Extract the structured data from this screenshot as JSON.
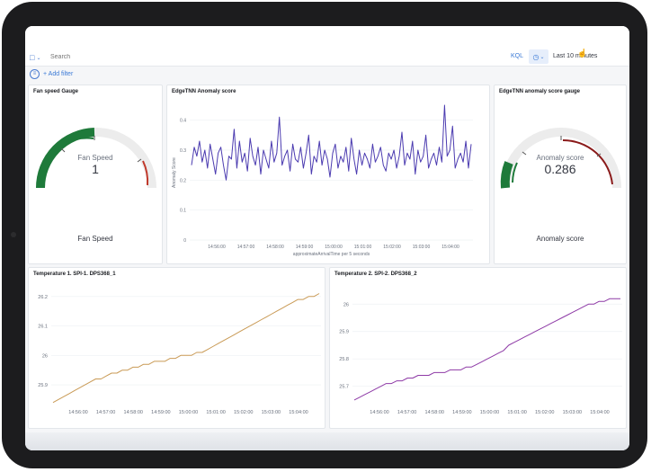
{
  "search": {
    "placeholder": "Search"
  },
  "query_language": "KQL",
  "time_range": {
    "label": "Last 10 minutes"
  },
  "filters": {
    "add_label": "+ Add filter"
  },
  "panels": {
    "fan_gauge": {
      "title": "Fan speed Gauge",
      "metric_label": "Fan Speed",
      "value": "1",
      "footer": "Fan Speed",
      "color": "#1e7a3a",
      "range_color": "#c0392b"
    },
    "anomaly_chart": {
      "title": "EdgeTNN Anomaly score"
    },
    "anomaly_gauge": {
      "title": "EdgeTNN anomaly score gauge",
      "metric_label": "Anomaly score",
      "value": "0.286",
      "footer": "Anomaly score"
    },
    "temp1": {
      "title": "Temperature 1. SPI-1. DPS368_1",
      "color": "#c99a55"
    },
    "temp2": {
      "title": "Temperature 2. SPI-2. DPS368_2",
      "color": "#8e3aa6"
    }
  },
  "chart_data": [
    {
      "type": "line",
      "title": "EdgeTNN Anomaly score",
      "xlabel": "approximateArrivalTime per 5 seconds",
      "ylabel": "Anomaly Score",
      "ylim": [
        0,
        0.45
      ],
      "yticks": [
        "0",
        "0.1",
        "0.2",
        "0.3",
        "0.4"
      ],
      "xticks": [
        "14:56:00",
        "14:57:00",
        "14:58:00",
        "14:59:00",
        "15:00:00",
        "15:01:00",
        "15:02:00",
        "15:03:00",
        "15:04:00"
      ],
      "series": [
        {
          "color": "#4b3bb0",
          "values": [
            0.25,
            0.31,
            0.28,
            0.33,
            0.26,
            0.3,
            0.24,
            0.32,
            0.27,
            0.22,
            0.29,
            0.31,
            0.25,
            0.2,
            0.28,
            0.27,
            0.37,
            0.24,
            0.33,
            0.26,
            0.29,
            0.23,
            0.34,
            0.28,
            0.25,
            0.31,
            0.22,
            0.3,
            0.27,
            0.24,
            0.33,
            0.26,
            0.29,
            0.41,
            0.25,
            0.28,
            0.3,
            0.23,
            0.32,
            0.27,
            0.26,
            0.31,
            0.24,
            0.29,
            0.35,
            0.22,
            0.28,
            0.26,
            0.33,
            0.25,
            0.3,
            0.27,
            0.21,
            0.29,
            0.32,
            0.24,
            0.28,
            0.26,
            0.31,
            0.23,
            0.34,
            0.27,
            0.22,
            0.3,
            0.25,
            0.29,
            0.27,
            0.24,
            0.32,
            0.26,
            0.28,
            0.31,
            0.25,
            0.23,
            0.29,
            0.27,
            0.3,
            0.24,
            0.28,
            0.36,
            0.25,
            0.29,
            0.27,
            0.33,
            0.22,
            0.3,
            0.26,
            0.28,
            0.35,
            0.24,
            0.27,
            0.29,
            0.25,
            0.31,
            0.26,
            0.45,
            0.28,
            0.3,
            0.38,
            0.24,
            0.27,
            0.29,
            0.26,
            0.33,
            0.24,
            0.32
          ]
        }
      ]
    },
    {
      "type": "line",
      "title": "Temperature 1. SPI-1. DPS368_1",
      "ylim": [
        25.83,
        26.23
      ],
      "yticks": [
        "25.9",
        "26",
        "26.1",
        "26.2"
      ],
      "xticks": [
        "14:56:00",
        "14:57:00",
        "14:58:00",
        "14:59:00",
        "15:00:00",
        "15:01:00",
        "15:02:00",
        "15:03:00",
        "15:04:00"
      ],
      "series": [
        {
          "color": "#c99a55",
          "values": [
            25.84,
            25.85,
            25.86,
            25.87,
            25.88,
            25.89,
            25.9,
            25.91,
            25.92,
            25.92,
            25.93,
            25.94,
            25.94,
            25.95,
            25.95,
            25.96,
            25.96,
            25.97,
            25.97,
            25.98,
            25.98,
            25.98,
            25.99,
            25.99,
            26.0,
            26.0,
            26.0,
            26.01,
            26.01,
            26.02,
            26.03,
            26.04,
            26.05,
            26.06,
            26.07,
            26.08,
            26.09,
            26.1,
            26.11,
            26.12,
            26.13,
            26.14,
            26.15,
            26.16,
            26.17,
            26.18,
            26.19,
            26.19,
            26.2,
            26.2,
            26.21
          ]
        }
      ]
    },
    {
      "type": "line",
      "title": "Temperature 2. SPI-2. DPS368_2",
      "ylim": [
        25.63,
        26.06
      ],
      "yticks": [
        "25.7",
        "25.8",
        "25.9",
        "26"
      ],
      "xticks": [
        "14:56:00",
        "14:57:00",
        "14:58:00",
        "14:59:00",
        "15:00:00",
        "15:01:00",
        "15:02:00",
        "15:03:00",
        "15:04:00"
      ],
      "series": [
        {
          "color": "#8e3aa6",
          "values": [
            25.65,
            25.66,
            25.67,
            25.68,
            25.69,
            25.7,
            25.71,
            25.71,
            25.72,
            25.72,
            25.73,
            25.73,
            25.74,
            25.74,
            25.74,
            25.75,
            25.75,
            25.75,
            25.76,
            25.76,
            25.76,
            25.77,
            25.77,
            25.78,
            25.79,
            25.8,
            25.81,
            25.82,
            25.83,
            25.85,
            25.86,
            25.87,
            25.88,
            25.89,
            25.9,
            25.91,
            25.92,
            25.93,
            25.94,
            25.95,
            25.96,
            25.97,
            25.98,
            25.99,
            26.0,
            26.0,
            26.01,
            26.01,
            26.02,
            26.02,
            26.02
          ]
        }
      ]
    }
  ]
}
